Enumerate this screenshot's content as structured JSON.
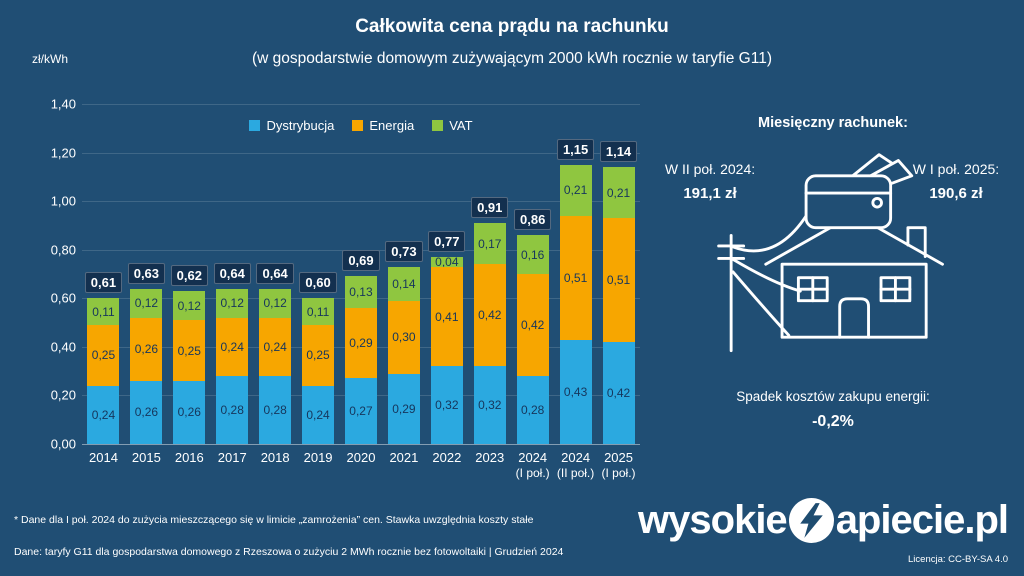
{
  "title": "Całkowita cena prądu na rachunku",
  "subtitle": "(w gospodarstwie domowym zużywającym 2000 kWh rocznie w taryfie G11)",
  "chart_data": {
    "type": "bar",
    "stacked": true,
    "title": "Całkowita cena prądu na rachunku",
    "subtitle": "(w gospodarstwie domowym zużywającym 2000 kWh rocznie w taryfie G11)",
    "ylabel": "zł/kWh",
    "ylim": [
      0,
      1.4
    ],
    "yticks": [
      "0,00",
      "0,20",
      "0,40",
      "0,60",
      "0,80",
      "1,00",
      "1,20",
      "1,40"
    ],
    "grid": true,
    "legend_position": "top-center",
    "categories": [
      "2014",
      "2015",
      "2016",
      "2017",
      "2018",
      "2019",
      "2020",
      "2021",
      "2022",
      "2023",
      "2024",
      "2024",
      "2025"
    ],
    "category_sublabels": [
      "",
      "",
      "",
      "",
      "",
      "",
      "",
      "",
      "",
      "",
      "(I poł.)",
      "(II poł.)",
      "(I poł.)"
    ],
    "series": [
      {
        "name": "Dystrybucja",
        "color": "#2BA9E0",
        "values": [
          0.24,
          0.26,
          0.26,
          0.28,
          0.28,
          0.24,
          0.27,
          0.29,
          0.32,
          0.32,
          0.28,
          0.43,
          0.42
        ]
      },
      {
        "name": "Energia",
        "color": "#F7A600",
        "values": [
          0.25,
          0.26,
          0.25,
          0.24,
          0.24,
          0.25,
          0.29,
          0.3,
          0.41,
          0.42,
          0.42,
          0.51,
          0.51
        ]
      },
      {
        "name": "VAT",
        "color": "#8FC640",
        "values": [
          0.11,
          0.12,
          0.12,
          0.12,
          0.12,
          0.11,
          0.13,
          0.14,
          0.04,
          0.17,
          0.16,
          0.21,
          0.21
        ]
      }
    ],
    "totals": [
      "0,61",
      "0,63",
      "0,62",
      "0,64",
      "0,64",
      "0,60",
      "0,69",
      "0,73",
      "0,77",
      "0,91",
      "0,86",
      "1,15",
      "1,14"
    ]
  },
  "right_panel": {
    "heading": "Miesięczny rachunek:",
    "left_label": "W II poł. 2024:",
    "left_value": "191,1 zł",
    "right_label": "W I poł. 2025:",
    "right_value": "190,6 zł",
    "drop_label": "Spadek kosztów zakupu energii:",
    "drop_value": "-0,2%"
  },
  "footer": {
    "note1": "* Dane dla I poł. 2024 do zużycia mieszczącego się w limicie „zamrożenia” cen. Stawka uwzględnia koszty stałe",
    "note2": "Dane: taryfy G11 dla gospodarstwa domowego z Rzeszowa o zużyciu 2 MWh rocznie bez fotowoltaiki  |  Grudzień 2024",
    "logo_prefix": "wysokie",
    "logo_suffix": "apiecie.pl",
    "license": "Licencja: CC-BY-SA 4.0"
  },
  "colors": {
    "background": "#204E74",
    "total_badge": "#13304F",
    "segment_text": "#16365C",
    "dystrybucja": "#2BA9E0",
    "energia": "#F7A600",
    "vat": "#8FC640"
  }
}
